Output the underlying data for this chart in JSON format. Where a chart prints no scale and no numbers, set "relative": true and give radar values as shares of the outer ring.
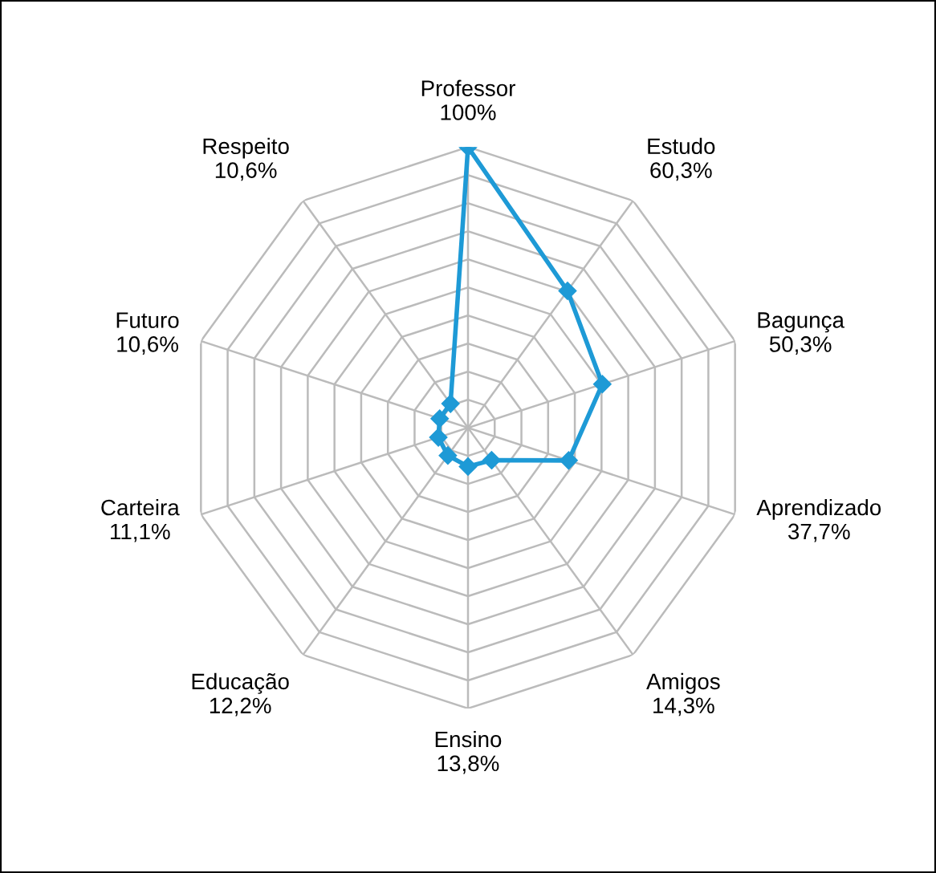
{
  "chart_data": {
    "type": "radar",
    "relative": true,
    "categories": [
      "Professor\n100%",
      "Estudo\n60,3%",
      "Bagunça\n50,3%",
      "Aprendizado\n37,7%",
      "Amigos\n14,3%",
      "Ensino\n13,8%",
      "Educação\n12,2%",
      "Carteira\n11,1%",
      "Futuro\n10,6%",
      "Respeito\n10,6%"
    ],
    "series": [
      {
        "color": "#1e9ad6",
        "values": [
          1,
          0.603,
          0.503,
          0.377,
          0.143,
          0.138,
          0.122,
          0.111,
          0.106,
          0.106
        ]
      }
    ],
    "grid": true,
    "marker": "diamond",
    "line_style": "solid"
  }
}
